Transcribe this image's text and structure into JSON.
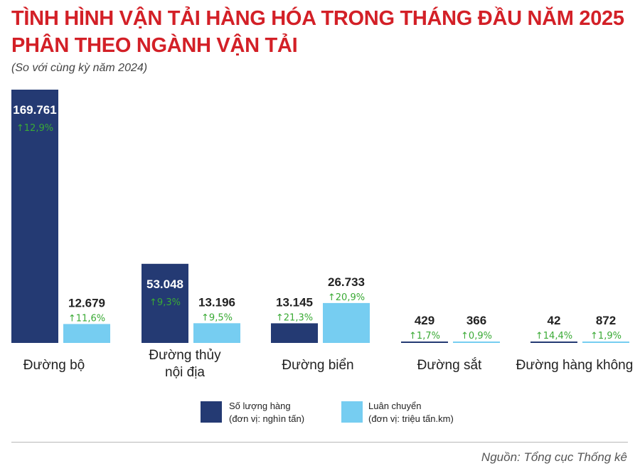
{
  "title_line1": "TÌNH HÌNH VẬN TẢI HÀNG HÓA TRONG THÁNG ĐẦU NĂM 2025",
  "title_line2": "PHÂN THEO NGÀNH VẬN TẢI",
  "subtitle": "(So với cùng kỳ năm 2024)",
  "source": "Nguồn: Tổng cục Thống kê",
  "colors": {
    "title": "#d32027",
    "volume": "#243a73",
    "turnover": "#76cdf1",
    "growth": "#3aaa35"
  },
  "chart_data": {
    "type": "bar",
    "categories": [
      "Đường bộ",
      "Đường thủy\nnội địa",
      "Đường biển",
      "Đường sắt",
      "Đường hàng không"
    ],
    "series": [
      {
        "name": "Số lượng hàng",
        "unit": "(đơn vị: nghìn tấn)",
        "values": [
          169761,
          53048,
          13145,
          429,
          42
        ],
        "labels": [
          "169.761",
          "53.048",
          "13.145",
          "429",
          "42"
        ],
        "growth": [
          "12,9%",
          "9,3%",
          "21,3%",
          "1,7%",
          "14,4%"
        ]
      },
      {
        "name": "Luân chuyển",
        "unit": "(đơn vị: triệu tấn.km)",
        "values": [
          12679,
          13196,
          26733,
          366,
          872
        ],
        "labels": [
          "12.679",
          "13.196",
          "26.733",
          "366",
          "872"
        ],
        "growth": [
          "11,6%",
          "9,5%",
          "20,9%",
          "0,9%",
          "1,9%"
        ]
      }
    ],
    "ylim": [
      0,
      169761
    ],
    "grid": false,
    "legend_position": "bottom-center"
  }
}
